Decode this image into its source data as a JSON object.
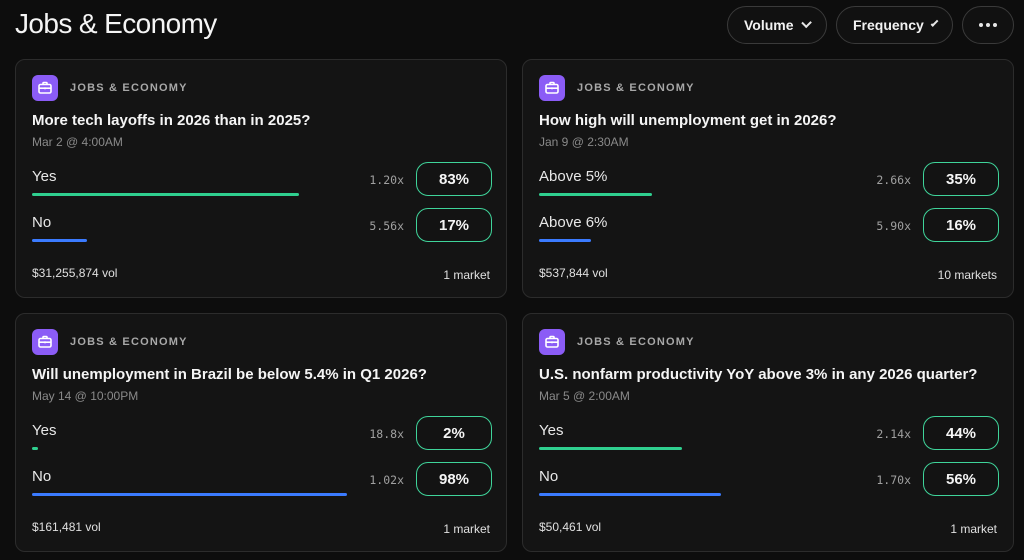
{
  "page": {
    "title": "Jobs & Economy"
  },
  "toolbar": {
    "volume_label": "Volume",
    "frequency_label": "Frequency"
  },
  "colors": {
    "yes_bar": "#2fcf8f",
    "no_bar": "#3b7bff",
    "badge_border": "#3fd49a",
    "category_icon": "#8b5cf6"
  },
  "cards": [
    {
      "category": "JOBS & ECONOMY",
      "icon": "briefcase-icon",
      "title": "More tech layoffs in 2026 than in 2025?",
      "date": "Mar 2 @ 4:00AM",
      "outcomes": [
        {
          "label": "Yes",
          "multiplier": "1.20x",
          "percent": "83%",
          "bar_fraction": 0.58,
          "bar_color": "#2fcf8f"
        },
        {
          "label": "No",
          "multiplier": "5.56x",
          "percent": "17%",
          "bar_fraction": 0.12,
          "bar_color": "#3b7bff"
        }
      ],
      "volume": "$31,255,874 vol",
      "markets": "1 market"
    },
    {
      "category": "JOBS & ECONOMY",
      "icon": "briefcase-icon",
      "title": "How high will unemployment get in 2026?",
      "date": "Jan 9 @ 2:30AM",
      "outcomes": [
        {
          "label": "Above 5%",
          "multiplier": "2.66x",
          "percent": "35%",
          "bar_fraction": 0.245,
          "bar_color": "#2fcf8f"
        },
        {
          "label": "Above 6%",
          "multiplier": "5.90x",
          "percent": "16%",
          "bar_fraction": 0.112,
          "bar_color": "#3b7bff"
        }
      ],
      "volume": "$537,844 vol",
      "markets": "10 markets"
    },
    {
      "category": "JOBS & ECONOMY",
      "icon": "briefcase-icon",
      "title": "Will unemployment in Brazil be below 5.4% in Q1 2026?",
      "date": "May 14 @ 10:00PM",
      "outcomes": [
        {
          "label": "Yes",
          "multiplier": "18.8x",
          "percent": "2%",
          "bar_fraction": 0.014,
          "bar_color": "#2fcf8f"
        },
        {
          "label": "No",
          "multiplier": "1.02x",
          "percent": "98%",
          "bar_fraction": 0.685,
          "bar_color": "#3b7bff"
        }
      ],
      "volume": "$161,481 vol",
      "markets": "1 market"
    },
    {
      "category": "JOBS & ECONOMY",
      "icon": "briefcase-icon",
      "title": "U.S. nonfarm productivity YoY above 3% in any 2026 quarter?",
      "date": "Mar 5 @ 2:00AM",
      "outcomes": [
        {
          "label": "Yes",
          "multiplier": "2.14x",
          "percent": "44%",
          "bar_fraction": 0.31,
          "bar_color": "#2fcf8f"
        },
        {
          "label": "No",
          "multiplier": "1.70x",
          "percent": "56%",
          "bar_fraction": 0.395,
          "bar_color": "#3b7bff"
        }
      ],
      "volume": "$50,461 vol",
      "markets": "1 market"
    }
  ]
}
